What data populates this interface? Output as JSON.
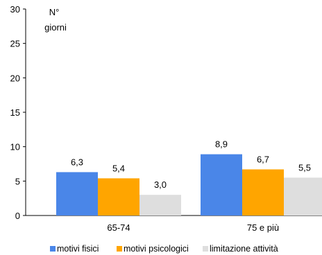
{
  "chart_data": {
    "type": "bar",
    "title": "",
    "ylabel_lines": [
      "N°",
      "giorni"
    ],
    "xlabel": "",
    "categories": [
      "65-74",
      "75 e più"
    ],
    "ylim": [
      0,
      30
    ],
    "yticks": [
      0,
      5,
      10,
      15,
      20,
      25,
      30
    ],
    "series": [
      {
        "name": "motivi fisici",
        "values": [
          6.3,
          8.9
        ],
        "labels": [
          "6,3",
          "8,9"
        ],
        "color": "#4a86e8"
      },
      {
        "name": "motivi psicologici",
        "values": [
          5.4,
          6.7
        ],
        "labels": [
          "5,4",
          "6,7"
        ],
        "color": "#ffa500"
      },
      {
        "name": "limitazione attività",
        "values": [
          3.0,
          5.5
        ],
        "labels": [
          "3,0",
          "5,5"
        ],
        "color": "#dedede"
      }
    ],
    "grid": false,
    "legend_position": "bottom"
  }
}
